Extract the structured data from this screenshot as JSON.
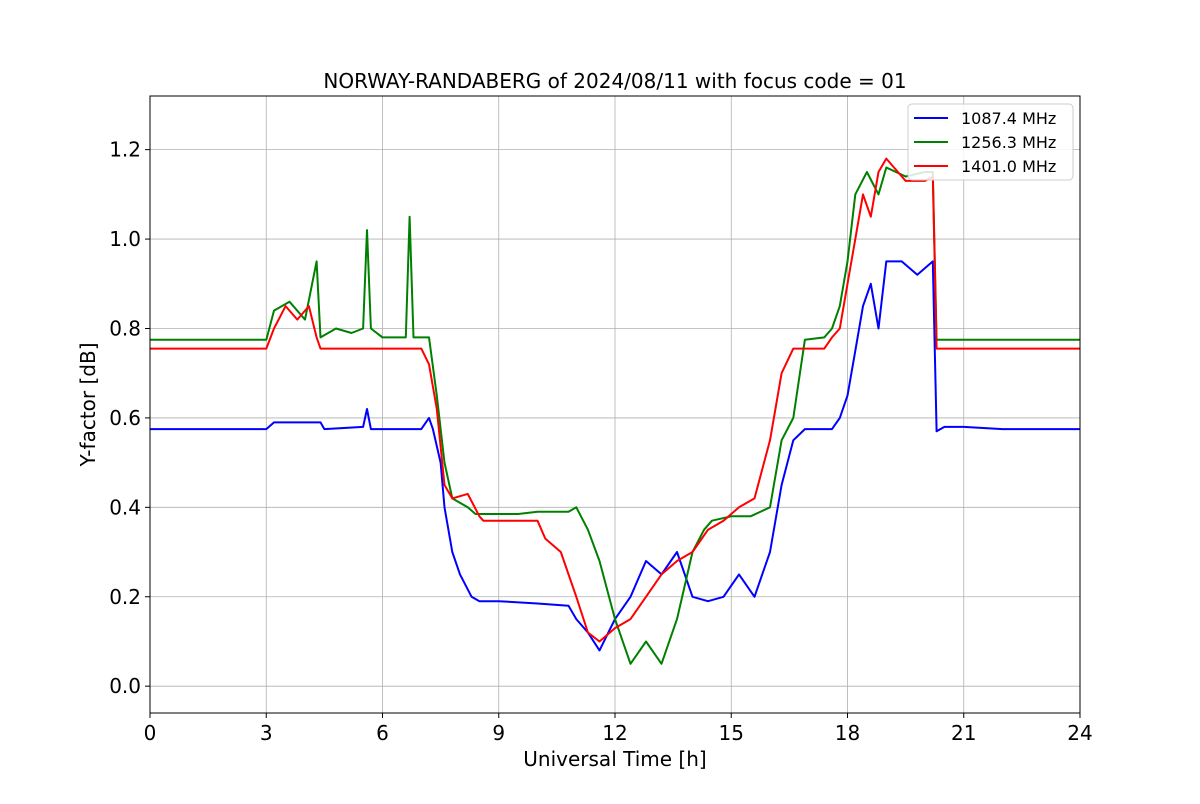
{
  "chart_data": {
    "type": "line",
    "title": "NORWAY-RANDABERG of 2024/08/11 with focus code = 01",
    "xlabel": "Universal Time [h]",
    "ylabel": "Y-factor [dB]",
    "xlim": [
      0,
      24
    ],
    "ylim": [
      -0.06,
      1.32
    ],
    "xticks": [
      0,
      3,
      6,
      9,
      12,
      15,
      18,
      21,
      24
    ],
    "xtick_labels": [
      "0",
      "3",
      "6",
      "9",
      "12",
      "15",
      "18",
      "21",
      "24"
    ],
    "yticks": [
      0.0,
      0.2,
      0.4,
      0.6,
      0.8,
      1.0,
      1.2
    ],
    "ytick_labels": [
      "0.0",
      "0.2",
      "0.4",
      "0.6",
      "0.8",
      "1.0",
      "1.2"
    ],
    "grid": true,
    "legend_position": "top-right",
    "series": [
      {
        "name": "1087.4 MHz",
        "color": "#0000ff",
        "points": [
          [
            0,
            0.575
          ],
          [
            3.0,
            0.575
          ],
          [
            3.2,
            0.59
          ],
          [
            4.4,
            0.59
          ],
          [
            4.5,
            0.575
          ],
          [
            5.5,
            0.58
          ],
          [
            5.6,
            0.62
          ],
          [
            5.7,
            0.575
          ],
          [
            7.0,
            0.575
          ],
          [
            7.2,
            0.6
          ],
          [
            7.3,
            0.575
          ],
          [
            7.5,
            0.5
          ],
          [
            7.6,
            0.4
          ],
          [
            7.8,
            0.3
          ],
          [
            8.0,
            0.25
          ],
          [
            8.3,
            0.2
          ],
          [
            8.5,
            0.19
          ],
          [
            9.0,
            0.19
          ],
          [
            10.0,
            0.185
          ],
          [
            10.8,
            0.18
          ],
          [
            11.0,
            0.15
          ],
          [
            11.3,
            0.12
          ],
          [
            11.6,
            0.08
          ],
          [
            12.0,
            0.15
          ],
          [
            12.4,
            0.2
          ],
          [
            12.8,
            0.28
          ],
          [
            13.2,
            0.25
          ],
          [
            13.6,
            0.3
          ],
          [
            14.0,
            0.2
          ],
          [
            14.4,
            0.19
          ],
          [
            14.8,
            0.2
          ],
          [
            15.2,
            0.25
          ],
          [
            15.6,
            0.2
          ],
          [
            16.0,
            0.3
          ],
          [
            16.3,
            0.45
          ],
          [
            16.6,
            0.55
          ],
          [
            16.9,
            0.575
          ],
          [
            17.6,
            0.575
          ],
          [
            17.8,
            0.6
          ],
          [
            18.0,
            0.65
          ],
          [
            18.2,
            0.75
          ],
          [
            18.4,
            0.85
          ],
          [
            18.6,
            0.9
          ],
          [
            18.8,
            0.8
          ],
          [
            19.0,
            0.95
          ],
          [
            19.4,
            0.95
          ],
          [
            19.8,
            0.92
          ],
          [
            20.2,
            0.95
          ],
          [
            20.3,
            0.57
          ],
          [
            20.5,
            0.58
          ],
          [
            21.0,
            0.58
          ],
          [
            22.0,
            0.575
          ],
          [
            24,
            0.575
          ]
        ]
      },
      {
        "name": "1256.3 MHz",
        "color": "#008000",
        "points": [
          [
            0,
            0.775
          ],
          [
            3.0,
            0.775
          ],
          [
            3.2,
            0.84
          ],
          [
            3.6,
            0.86
          ],
          [
            4.0,
            0.82
          ],
          [
            4.3,
            0.95
          ],
          [
            4.4,
            0.78
          ],
          [
            4.8,
            0.8
          ],
          [
            5.2,
            0.79
          ],
          [
            5.5,
            0.8
          ],
          [
            5.6,
            1.02
          ],
          [
            5.7,
            0.8
          ],
          [
            6.0,
            0.78
          ],
          [
            6.6,
            0.78
          ],
          [
            6.7,
            1.05
          ],
          [
            6.8,
            0.78
          ],
          [
            7.2,
            0.78
          ],
          [
            7.4,
            0.65
          ],
          [
            7.6,
            0.5
          ],
          [
            7.8,
            0.42
          ],
          [
            8.2,
            0.4
          ],
          [
            8.4,
            0.385
          ],
          [
            9.5,
            0.385
          ],
          [
            10.0,
            0.39
          ],
          [
            10.8,
            0.39
          ],
          [
            11.0,
            0.4
          ],
          [
            11.3,
            0.35
          ],
          [
            11.6,
            0.28
          ],
          [
            12.0,
            0.15
          ],
          [
            12.4,
            0.05
          ],
          [
            12.8,
            0.1
          ],
          [
            13.2,
            0.05
          ],
          [
            13.6,
            0.15
          ],
          [
            14.0,
            0.3
          ],
          [
            14.3,
            0.35
          ],
          [
            14.5,
            0.37
          ],
          [
            15.0,
            0.38
          ],
          [
            15.5,
            0.38
          ],
          [
            16.0,
            0.4
          ],
          [
            16.3,
            0.55
          ],
          [
            16.6,
            0.6
          ],
          [
            16.9,
            0.775
          ],
          [
            17.4,
            0.78
          ],
          [
            17.6,
            0.8
          ],
          [
            17.8,
            0.85
          ],
          [
            18.0,
            0.95
          ],
          [
            18.2,
            1.1
          ],
          [
            18.5,
            1.15
          ],
          [
            18.8,
            1.1
          ],
          [
            19.0,
            1.16
          ],
          [
            19.5,
            1.14
          ],
          [
            20.0,
            1.15
          ],
          [
            20.2,
            1.15
          ],
          [
            20.3,
            0.775
          ],
          [
            21.0,
            0.775
          ],
          [
            24,
            0.775
          ]
        ]
      },
      {
        "name": "1401.0 MHz",
        "color": "#ff0000",
        "points": [
          [
            0,
            0.755
          ],
          [
            3.0,
            0.755
          ],
          [
            3.2,
            0.8
          ],
          [
            3.5,
            0.85
          ],
          [
            3.8,
            0.82
          ],
          [
            4.1,
            0.85
          ],
          [
            4.3,
            0.78
          ],
          [
            4.4,
            0.755
          ],
          [
            7.0,
            0.755
          ],
          [
            7.2,
            0.72
          ],
          [
            7.4,
            0.62
          ],
          [
            7.6,
            0.45
          ],
          [
            7.8,
            0.42
          ],
          [
            8.2,
            0.43
          ],
          [
            8.5,
            0.38
          ],
          [
            8.6,
            0.37
          ],
          [
            9.5,
            0.37
          ],
          [
            10.0,
            0.37
          ],
          [
            10.2,
            0.33
          ],
          [
            10.6,
            0.3
          ],
          [
            11.0,
            0.2
          ],
          [
            11.3,
            0.12
          ],
          [
            11.6,
            0.1
          ],
          [
            12.0,
            0.13
          ],
          [
            12.4,
            0.15
          ],
          [
            12.8,
            0.2
          ],
          [
            13.2,
            0.25
          ],
          [
            13.6,
            0.28
          ],
          [
            14.0,
            0.3
          ],
          [
            14.4,
            0.35
          ],
          [
            14.8,
            0.37
          ],
          [
            15.2,
            0.4
          ],
          [
            15.6,
            0.42
          ],
          [
            16.0,
            0.55
          ],
          [
            16.3,
            0.7
          ],
          [
            16.6,
            0.755
          ],
          [
            17.4,
            0.755
          ],
          [
            17.6,
            0.78
          ],
          [
            17.8,
            0.8
          ],
          [
            18.0,
            0.9
          ],
          [
            18.2,
            1.0
          ],
          [
            18.4,
            1.1
          ],
          [
            18.6,
            1.05
          ],
          [
            18.8,
            1.15
          ],
          [
            19.0,
            1.18
          ],
          [
            19.5,
            1.13
          ],
          [
            20.0,
            1.13
          ],
          [
            20.2,
            1.14
          ],
          [
            20.3,
            0.755
          ],
          [
            21.0,
            0.755
          ],
          [
            24,
            0.755
          ]
        ]
      }
    ]
  }
}
